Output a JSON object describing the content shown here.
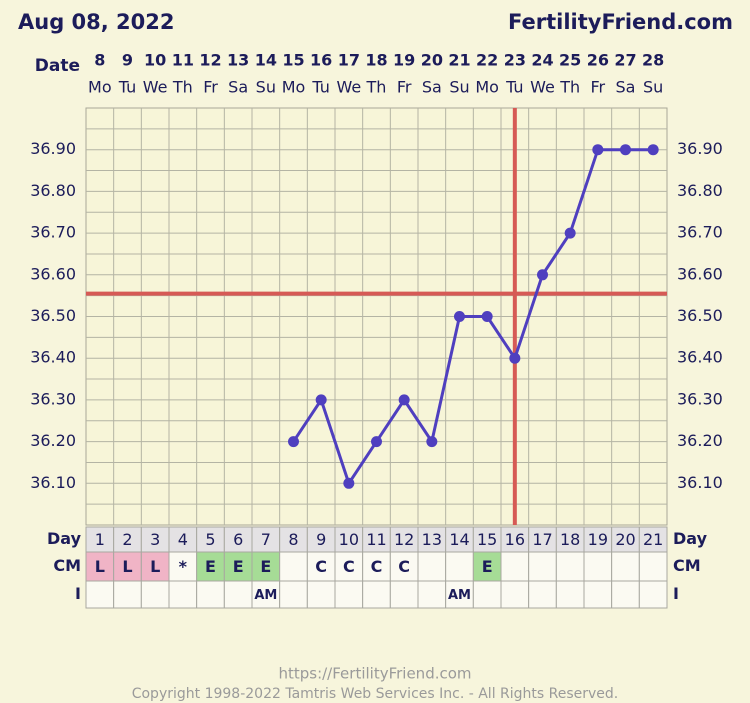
{
  "header": {
    "date": "Aug 08, 2022",
    "site": "FertilityFriend.com"
  },
  "chart_data": {
    "type": "line",
    "date_label": "Date",
    "categories": [
      "8",
      "9",
      "10",
      "11",
      "12",
      "13",
      "14",
      "15",
      "16",
      "17",
      "18",
      "19",
      "20",
      "21",
      "22",
      "23",
      "24",
      "25",
      "26",
      "27",
      "28"
    ],
    "weekdays": [
      "Mo",
      "Tu",
      "We",
      "Th",
      "Fr",
      "Sa",
      "Su",
      "Mo",
      "Tu",
      "We",
      "Th",
      "Fr",
      "Sa",
      "Su",
      "Mo",
      "Tu",
      "We",
      "Th",
      "Fr",
      "Sa",
      "Su"
    ],
    "values": [
      null,
      null,
      null,
      null,
      null,
      null,
      null,
      36.2,
      36.3,
      36.1,
      36.2,
      36.3,
      36.2,
      36.5,
      36.5,
      36.4,
      36.6,
      36.7,
      36.9,
      36.9,
      36.9
    ],
    "color": "#4f3fbf",
    "ylim": [
      36.0,
      37.0
    ],
    "yticks": [
      {
        "value": 36.1,
        "label": "36.10"
      },
      {
        "value": 36.2,
        "label": "36.20"
      },
      {
        "value": 36.3,
        "label": "36.30"
      },
      {
        "value": 36.4,
        "label": "36.40"
      },
      {
        "value": 36.5,
        "label": "36.50"
      },
      {
        "value": 36.6,
        "label": "36.60"
      },
      {
        "value": 36.7,
        "label": "36.70"
      },
      {
        "value": 36.8,
        "label": "36.80"
      },
      {
        "value": 36.9,
        "label": "36.90"
      }
    ],
    "grid": true,
    "coverline": 36.555,
    "ovulation_day": 16,
    "marker_color": "#d65a55"
  },
  "table": {
    "row_labels": [
      "Day",
      "CM",
      "I"
    ],
    "days": [
      1,
      2,
      3,
      4,
      5,
      6,
      7,
      8,
      9,
      10,
      11,
      12,
      13,
      14,
      15,
      16,
      17,
      18,
      19,
      20,
      21
    ],
    "cm": [
      "L",
      "L",
      "L",
      "*",
      "E",
      "E",
      "E",
      null,
      "C",
      "C",
      "C",
      "C",
      null,
      null,
      "E",
      null,
      null,
      null,
      null,
      null,
      null
    ],
    "intercourse": [
      null,
      null,
      null,
      null,
      null,
      null,
      "AM",
      null,
      null,
      null,
      null,
      null,
      null,
      "AM",
      null,
      null,
      null,
      null,
      null,
      null,
      null
    ],
    "cm_colors": {
      "L": "#f0b4c6",
      "E": "#a6dc96"
    }
  },
  "footer": {
    "url": "https://FertilityFriend.com",
    "copyright": "Copyright 1998-2022 Tamtris Web Services Inc. - All Rights Reserved."
  }
}
